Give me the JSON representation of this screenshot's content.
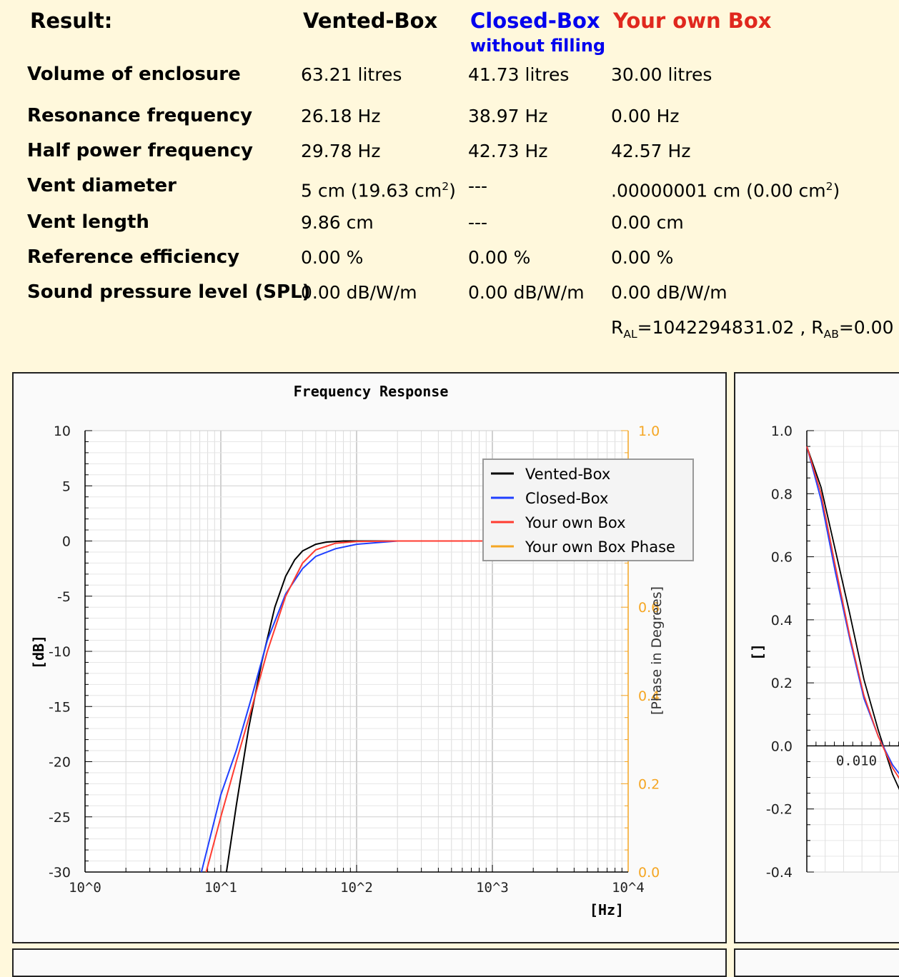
{
  "results": {
    "title": "Result:",
    "columns": {
      "vented": "Vented-Box",
      "closed": "Closed-Box",
      "closed_sub": "without filling",
      "own": "Your own Box"
    },
    "colors": {
      "vented": "#000000",
      "closed": "#0000ee",
      "own": "#e0281e"
    },
    "rows": {
      "volume": {
        "label": "Volume of enclosure",
        "vented": "63.21 litres",
        "closed": "41.73 litres",
        "own": "30.00 litres"
      },
      "resonance": {
        "label": "Resonance frequency",
        "vented": "26.18 Hz",
        "closed": "38.97 Hz",
        "own": "0.00 Hz"
      },
      "halfpower": {
        "label": "Half power frequency",
        "vented": "29.78 Hz",
        "closed": "42.73 Hz",
        "own": "42.57 Hz"
      },
      "ventdia": {
        "label": "Vent diameter",
        "vented_cm": "5 cm (19.63 cm",
        "vented_close": ")",
        "closed": "---",
        "own_cm": ".00000001 cm (0.00 cm",
        "own_close": ")",
        "sup": "2"
      },
      "ventlen": {
        "label": "Vent length",
        "vented": "9.86 cm",
        "closed": "---",
        "own": "0.00 cm"
      },
      "efficiency": {
        "label": "Reference efficiency",
        "vented": "0.00 %",
        "closed": "0.00 %",
        "own": "0.00 %"
      },
      "spl": {
        "label": "Sound pressure level (SPL)",
        "vented": "0.00 dB/W/m",
        "closed": "0.00 dB/W/m",
        "own": "0.00 dB/W/m"
      }
    },
    "ral": {
      "r": "R",
      "al_sub": "AL",
      "al_val": "=1042294831.02 , ",
      "ab_sub": "AB",
      "ab_val": "=0.00"
    }
  },
  "freq_chart": {
    "title": "Frequency Response",
    "ylabel": "[dB]",
    "xlabel": "[Hz]",
    "y2label": "[Phase in Degrees]",
    "yticks": [
      "10",
      "5",
      "0",
      "-5",
      "-10",
      "-15",
      "-20",
      "-25",
      "-30"
    ],
    "xticks": [
      "10^0",
      "10^1",
      "10^2",
      "10^3",
      "10^4"
    ],
    "y2ticks": [
      "1.0",
      "0.8",
      "0.6",
      "0.4",
      "0.2",
      "0.0"
    ],
    "legend": [
      {
        "label": "Vented-Box",
        "color": "#000000"
      },
      {
        "label": "Closed-Box",
        "color": "#1f3fff"
      },
      {
        "label": "Your own Box",
        "color": "#ff3b30"
      },
      {
        "label": "Your own Box Phase",
        "color": "#f5a623"
      }
    ]
  },
  "chart_data": [
    {
      "type": "line",
      "title": "Frequency Response",
      "xlabel": "[Hz]",
      "ylabel": "[dB]",
      "xscale": "log",
      "xlim": [
        1,
        10000
      ],
      "ylim": [
        -30,
        10
      ],
      "y2lim": [
        0,
        1
      ],
      "series": [
        {
          "name": "Vented-Box",
          "x": [
            11,
            13,
            16,
            20,
            25,
            30,
            35,
            40,
            50,
            60,
            80,
            200
          ],
          "y": [
            -30,
            -24,
            -17,
            -11,
            -6,
            -3.2,
            -1.7,
            -0.9,
            -0.3,
            -0.1,
            0,
            0
          ]
        },
        {
          "name": "Closed-Box",
          "x": [
            7.2,
            10,
            13,
            17,
            22,
            30,
            40,
            50,
            70,
            100,
            200
          ],
          "y": [
            -30,
            -23,
            -19,
            -14,
            -9,
            -4.8,
            -2.5,
            -1.4,
            -0.7,
            -0.3,
            0
          ]
        },
        {
          "name": "Your own Box",
          "x": [
            7.8,
            10,
            13,
            17,
            22,
            30,
            40,
            50,
            70,
            100,
            200,
            1000
          ],
          "y": [
            -30,
            -25,
            -20,
            -15,
            -10,
            -5,
            -2,
            -0.8,
            -0.2,
            -0.05,
            0,
            0
          ]
        }
      ]
    },
    {
      "type": "line",
      "title": "",
      "ylabel": "[]",
      "xlim": [
        0,
        0.014
      ],
      "ylim": [
        -0.4,
        1.0
      ],
      "yticks": [
        "1.0",
        "0.8",
        "0.6",
        "0.4",
        "0.2",
        "0.0",
        "-0.2",
        "-0.4"
      ],
      "xticks": [
        "0.010"
      ],
      "series": [
        {
          "name": "Vented-Box",
          "x": [
            0,
            0.001,
            0.002,
            0.003,
            0.004,
            0.005,
            0.006,
            0.007,
            0.008,
            0.009,
            0.01,
            0.011,
            0.012,
            0.013
          ],
          "y": [
            0.95,
            0.82,
            0.62,
            0.42,
            0.21,
            0.05,
            -0.09,
            -0.19,
            -0.27,
            -0.33,
            -0.35,
            -0.32,
            -0.26,
            -0.17
          ]
        },
        {
          "name": "Closed-Box",
          "x": [
            0,
            0.001,
            0.002,
            0.003,
            0.004,
            0.005,
            0.006,
            0.007,
            0.008,
            0.009,
            0.01,
            0.011,
            0.012,
            0.013
          ],
          "y": [
            0.95,
            0.78,
            0.55,
            0.34,
            0.15,
            0.03,
            -0.06,
            -0.12,
            -0.17,
            -0.19,
            -0.18,
            -0.15,
            -0.12,
            -0.08
          ]
        },
        {
          "name": "Your own Box",
          "x": [
            0,
            0.001,
            0.002,
            0.003,
            0.004,
            0.005,
            0.006,
            0.007,
            0.008,
            0.009,
            0.01,
            0.011,
            0.012,
            0.013
          ],
          "y": [
            0.95,
            0.8,
            0.57,
            0.35,
            0.16,
            0.03,
            -0.07,
            -0.14,
            -0.19,
            -0.22,
            -0.21,
            -0.18,
            -0.13,
            -0.08
          ]
        }
      ]
    }
  ],
  "second_chart": {
    "ylabel": "[]",
    "yticks": [
      "1.0",
      "0.8",
      "0.6",
      "0.4",
      "0.2",
      "0.0",
      "-0.2",
      "-0.4"
    ],
    "xtick": "0.010"
  }
}
